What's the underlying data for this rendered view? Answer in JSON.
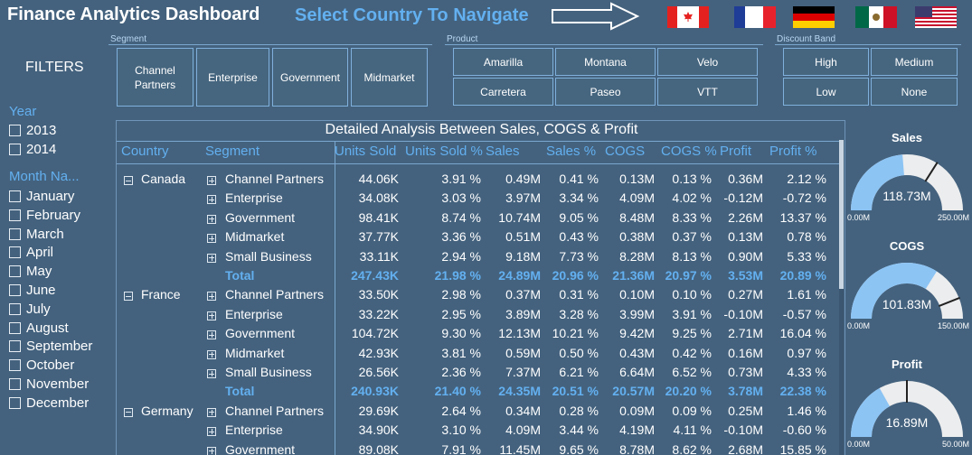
{
  "header": {
    "title": "Finance Analytics Dashboard",
    "nav_text": "Select Country To Navigate",
    "flags": [
      "canada-flag",
      "france-flag",
      "germany-flag",
      "mexico-flag",
      "usa-flag"
    ]
  },
  "filters_label": "FILTERS",
  "segment_slicer": {
    "label": "Segment",
    "options": [
      "Channel Partners",
      "Enterprise",
      "Government",
      "Midmarket"
    ]
  },
  "product_slicer": {
    "label": "Product",
    "options": [
      "Amarilla",
      "Montana",
      "Velo",
      "Carretera",
      "Paseo",
      "VTT"
    ]
  },
  "discount_slicer": {
    "label": "Discount Band",
    "options": [
      "High",
      "Medium",
      "Low",
      "None"
    ]
  },
  "year_filter": {
    "label": "Year",
    "options": [
      "2013",
      "2014"
    ]
  },
  "month_filter": {
    "label": "Month Na...",
    "options": [
      "January",
      "February",
      "March",
      "April",
      "May",
      "June",
      "July",
      "August",
      "September",
      "October",
      "November",
      "December"
    ]
  },
  "matrix": {
    "title": "Detailed Analysis Between Sales, COGS & Profit",
    "headers": [
      "Country",
      "Segment",
      "Units Sold",
      "Units Sold %",
      "Sales",
      "Sales %",
      "COGS",
      "COGS %",
      "Profit",
      "Profit %"
    ],
    "groups": [
      {
        "country": "Canada",
        "rows": [
          [
            "Channel Partners",
            "44.06K",
            "3.91 %",
            "0.49M",
            "0.41 %",
            "0.13M",
            "0.13 %",
            "0.36M",
            "2.12 %"
          ],
          [
            "Enterprise",
            "34.08K",
            "3.03 %",
            "3.97M",
            "3.34 %",
            "4.09M",
            "4.02 %",
            "-0.12M",
            "-0.72 %"
          ],
          [
            "Government",
            "98.41K",
            "8.74 %",
            "10.74M",
            "9.05 %",
            "8.48M",
            "8.33 %",
            "2.26M",
            "13.37 %"
          ],
          [
            "Midmarket",
            "37.77K",
            "3.36 %",
            "0.51M",
            "0.43 %",
            "0.38M",
            "0.37 %",
            "0.13M",
            "0.78 %"
          ],
          [
            "Small Business",
            "33.11K",
            "2.94 %",
            "9.18M",
            "7.73 %",
            "8.28M",
            "8.13 %",
            "0.90M",
            "5.33 %"
          ]
        ],
        "total": [
          "Total",
          "247.43K",
          "21.98 %",
          "24.89M",
          "20.96 %",
          "21.36M",
          "20.97 %",
          "3.53M",
          "20.89 %"
        ]
      },
      {
        "country": "France",
        "rows": [
          [
            "Channel Partners",
            "33.50K",
            "2.98 %",
            "0.37M",
            "0.31 %",
            "0.10M",
            "0.10 %",
            "0.27M",
            "1.61 %"
          ],
          [
            "Enterprise",
            "33.22K",
            "2.95 %",
            "3.89M",
            "3.28 %",
            "3.99M",
            "3.91 %",
            "-0.10M",
            "-0.57 %"
          ],
          [
            "Government",
            "104.72K",
            "9.30 %",
            "12.13M",
            "10.21 %",
            "9.42M",
            "9.25 %",
            "2.71M",
            "16.04 %"
          ],
          [
            "Midmarket",
            "42.93K",
            "3.81 %",
            "0.59M",
            "0.50 %",
            "0.43M",
            "0.42 %",
            "0.16M",
            "0.97 %"
          ],
          [
            "Small Business",
            "26.56K",
            "2.36 %",
            "7.37M",
            "6.21 %",
            "6.64M",
            "6.52 %",
            "0.73M",
            "4.33 %"
          ]
        ],
        "total": [
          "Total",
          "240.93K",
          "21.40 %",
          "24.35M",
          "20.51 %",
          "20.57M",
          "20.20 %",
          "3.78M",
          "22.38 %"
        ]
      },
      {
        "country": "Germany",
        "rows": [
          [
            "Channel Partners",
            "29.69K",
            "2.64 %",
            "0.34M",
            "0.28 %",
            "0.09M",
            "0.09 %",
            "0.25M",
            "1.46 %"
          ],
          [
            "Enterprise",
            "34.90K",
            "3.10 %",
            "4.09M",
            "3.44 %",
            "4.19M",
            "4.11 %",
            "-0.10M",
            "-0.60 %"
          ],
          [
            "Government",
            "89.08K",
            "7.91 %",
            "11.45M",
            "9.65 %",
            "8.78M",
            "8.62 %",
            "2.68M",
            "15.85 %"
          ]
        ]
      }
    ]
  },
  "gauges": [
    {
      "title": "Sales",
      "value_label": "118.73M",
      "min_label": "0.00M",
      "max_label": "250.00M",
      "value": 118.73,
      "min": 0,
      "max": 250,
      "target": 170
    },
    {
      "title": "COGS",
      "value_label": "101.83M",
      "min_label": "0.00M",
      "max_label": "150.00M",
      "value": 101.83,
      "min": 0,
      "max": 150,
      "target": 132
    },
    {
      "title": "Profit",
      "value_label": "16.89M",
      "min_label": "0.00M",
      "max_label": "50.00M",
      "value": 16.89,
      "min": 0,
      "max": 50,
      "target": 25
    }
  ],
  "colors": {
    "background": "#44627e",
    "accent": "#63b0f0",
    "gauge_fill": "#8cc4f4",
    "gauge_track": "#ecedee"
  }
}
